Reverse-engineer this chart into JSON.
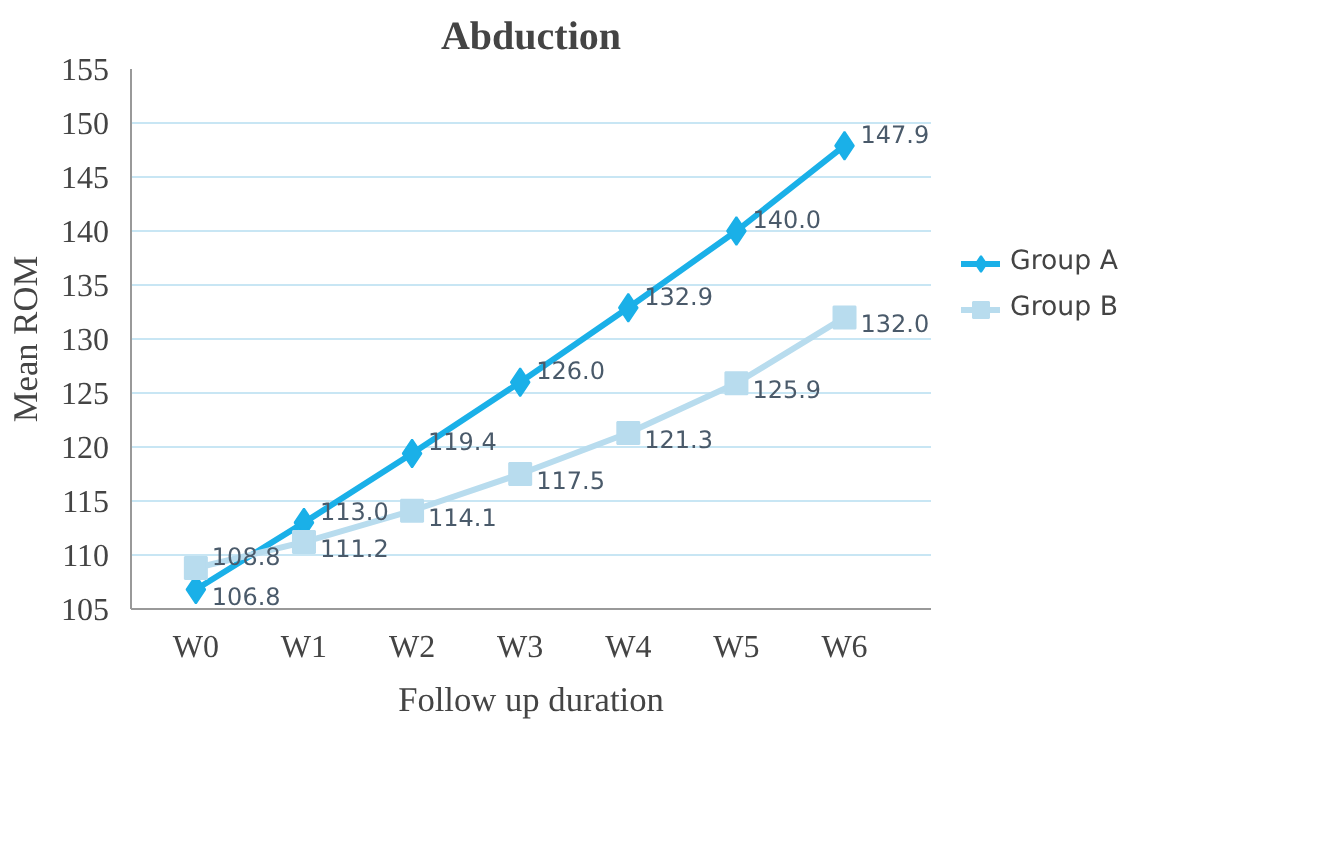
{
  "chart_data": {
    "type": "line",
    "title": "Abduction",
    "xlabel": "Follow up duration",
    "ylabel": "Mean ROM",
    "categories": [
      "W0",
      "W1",
      "W2",
      "W3",
      "W4",
      "W5",
      "W6"
    ],
    "series": [
      {
        "name": "Group A",
        "color": "#1ab0e8",
        "marker": "diamond",
        "values": [
          106.8,
          113.0,
          119.4,
          126.0,
          132.9,
          140.0,
          147.9
        ],
        "value_labels": [
          "106.8",
          "113.0",
          "119.4",
          "126.0",
          "132.9",
          "140.0",
          "147.9"
        ]
      },
      {
        "name": "Group B",
        "color": "#b8dcee",
        "marker": "square",
        "values": [
          108.8,
          111.2,
          114.1,
          117.5,
          121.3,
          125.9,
          132.0
        ],
        "value_labels": [
          "108.8",
          "111.2",
          "114.1",
          "117.5",
          "121.3",
          "125.9",
          "132.0"
        ]
      }
    ],
    "ylim": [
      105,
      155
    ],
    "yticks": [
      105,
      110,
      115,
      120,
      125,
      130,
      135,
      140,
      145,
      150,
      155
    ],
    "grid": "y",
    "legend": "right",
    "line_style": "solid"
  }
}
